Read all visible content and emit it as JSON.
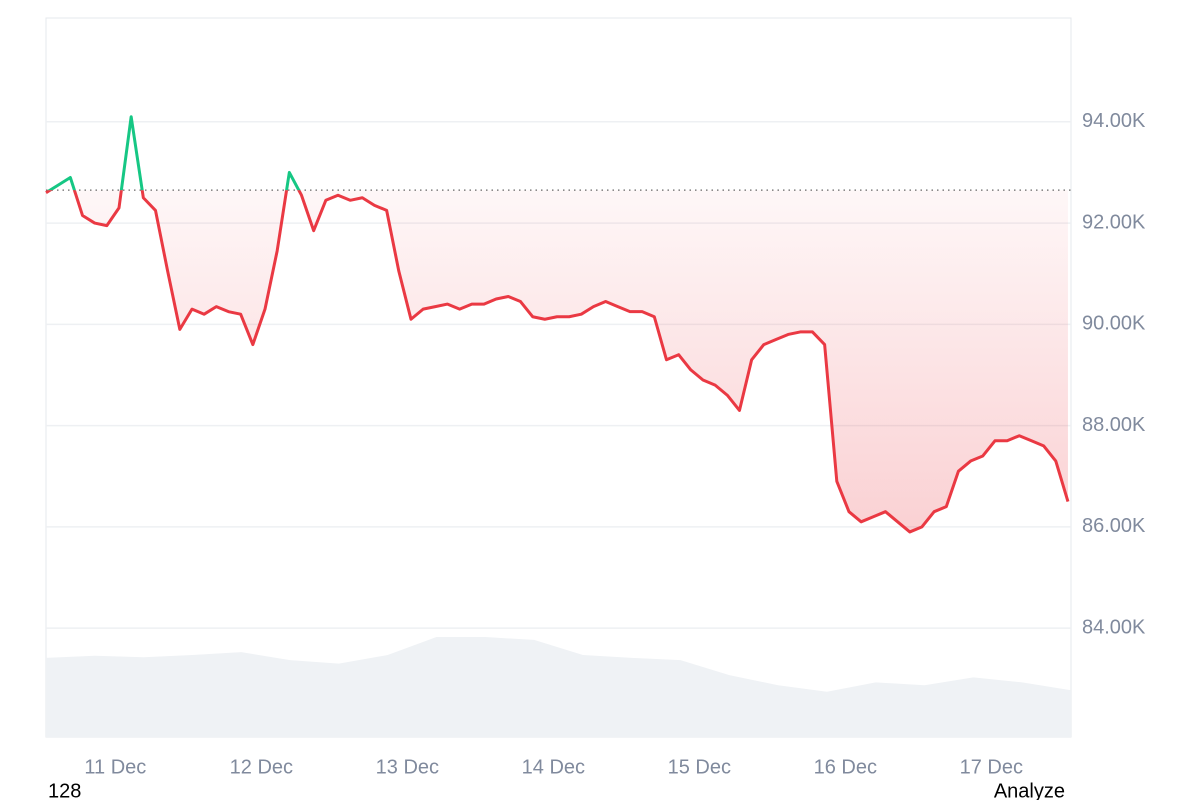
{
  "chart_data": {
    "type": "line",
    "x": [
      0,
      1,
      2,
      3,
      4,
      5,
      6,
      7,
      8,
      9,
      10,
      11,
      12,
      13,
      14,
      15,
      16,
      17,
      18,
      19,
      20,
      21,
      22,
      23,
      24,
      25,
      26,
      27,
      28,
      29,
      30,
      31,
      32,
      33,
      34,
      35,
      36,
      37,
      38,
      39,
      40,
      41,
      42,
      43,
      44,
      45,
      46,
      47,
      48,
      49,
      50,
      51,
      52,
      53,
      54,
      55,
      56,
      57,
      58,
      59,
      60,
      61,
      62,
      63,
      64,
      65,
      66,
      67,
      68,
      69,
      70,
      71,
      72,
      73,
      74,
      75,
      76,
      77,
      78,
      79,
      80,
      81,
      82,
      83,
      84
    ],
    "series": [
      {
        "color": "#ea3943",
        "color_above": "#16c784",
        "values": [
          92600,
          92750,
          92900,
          92150,
          92000,
          91950,
          92300,
          94100,
          92500,
          92250,
          91050,
          89900,
          90300,
          90200,
          90350,
          90250,
          90200,
          89600,
          90300,
          91450,
          93000,
          92550,
          91850,
          92450,
          92550,
          92450,
          92500,
          92350,
          92250,
          91050,
          90100,
          90300,
          90350,
          90400,
          90300,
          90400,
          90400,
          90500,
          90550,
          90450,
          90150,
          90100,
          90150,
          90150,
          90200,
          90350,
          90450,
          90350,
          90250,
          90250,
          90150,
          89300,
          89400,
          89100,
          88900,
          88800,
          88600,
          88300,
          89300,
          89600,
          89700,
          89800,
          89850,
          89850,
          89600,
          86900,
          86300,
          86100,
          86200,
          86300,
          86100,
          85900,
          86000,
          86300,
          86400,
          87100,
          87300,
          87400,
          87700,
          87700,
          87800,
          87700,
          87600,
          87300,
          86500
        ]
      }
    ],
    "baseline": 92650,
    "xlim": [
      0,
      84.25
    ],
    "xticks": [
      {
        "value": 5.7,
        "label": "11 Dec"
      },
      {
        "value": 17.7,
        "label": "12 Dec"
      },
      {
        "value": 29.7,
        "label": "13 Dec"
      },
      {
        "value": 41.7,
        "label": "14 Dec"
      },
      {
        "value": 53.7,
        "label": "15 Dec"
      },
      {
        "value": 65.7,
        "label": "16 Dec"
      },
      {
        "value": 77.7,
        "label": "17 Dec"
      }
    ],
    "ylim": [
      81850,
      96050
    ],
    "yticks": [
      {
        "value": 84000,
        "label": "84.00K"
      },
      {
        "value": 86000,
        "label": "86.00K"
      },
      {
        "value": 88000,
        "label": "88.00K"
      },
      {
        "value": 90000,
        "label": "90.00K"
      },
      {
        "value": 92000,
        "label": "92.00K"
      },
      {
        "value": 94000,
        "label": "94.00K"
      }
    ],
    "grid": true,
    "volume": {
      "color": "#eff2f5",
      "values": [
        11.0,
        11.3,
        11.1,
        11.4,
        11.8,
        10.7,
        10.2,
        11.4,
        13.9,
        13.9,
        13.5,
        11.4,
        11.0,
        10.7,
        8.6,
        7.2,
        6.3,
        7.6,
        7.2,
        8.3,
        7.6,
        6.5
      ]
    },
    "y2lim": [
      0,
      100
    ]
  },
  "footer": {
    "left": "128",
    "right": "Analyze"
  }
}
